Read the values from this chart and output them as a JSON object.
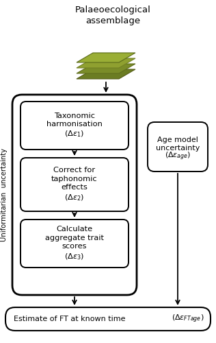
{
  "title_text": "Palaeoecological\nassemblage",
  "box1_text": "Taxonomic\nharmonisation\n($\\Delta\\varepsilon_1$)",
  "box2_text": "Correct for\ntaphonomic\neffects\n($\\Delta\\varepsilon_2$)",
  "box3_text": "Calculate\naggregate trait\nscores\n($\\Delta\\varepsilon_3$)",
  "box_right_line1": "Age model",
  "box_right_line2": "uncertainty",
  "box_right_line3": "($\\Delta\\varepsilon_{age}$)",
  "side_label": "Uniformitarian  uncertainty",
  "bottom_text1": "Estimate of FT at known time",
  "bottom_text2": "  ($\\Delta\\varepsilon_{FTage}$)",
  "bg_color": "#ffffff",
  "border_color": "#000000",
  "text_color": "#000000",
  "arrow_color": "#000000",
  "img_colors": [
    "#6b7c22",
    "#7a8c28",
    "#8fa030"
  ],
  "img_colors_dark": [
    "#555c18",
    "#606e1e",
    "#728024"
  ]
}
